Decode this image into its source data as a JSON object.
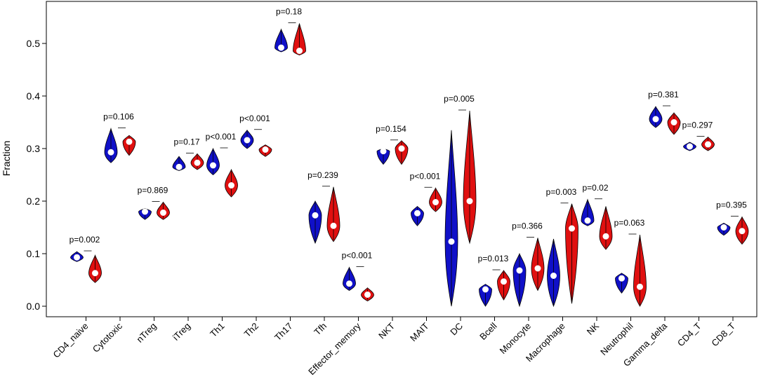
{
  "chart_data": {
    "type": "violin",
    "title": "",
    "xlabel": "",
    "ylabel": "Fraction",
    "ylim": [
      -0.01,
      0.58
    ],
    "yticks": [
      0.0,
      0.1,
      0.2,
      0.3,
      0.4,
      0.5
    ],
    "ytick_labels": [
      "0.0",
      "0.1",
      "0.2",
      "0.3",
      "0.4",
      "0.5"
    ],
    "series_colors": [
      "#1010c8",
      "#e01010"
    ],
    "categories": [
      {
        "name": "CD4_naive",
        "p": "p=0.002",
        "blue": {
          "min": 0.085,
          "max": 0.104,
          "median": 0.093
        },
        "red": {
          "min": 0.045,
          "max": 0.097,
          "median": 0.063
        }
      },
      {
        "name": "Cytotoxic",
        "p": "p=0.106",
        "blue": {
          "min": 0.273,
          "max": 0.338,
          "median": 0.293
        },
        "red": {
          "min": 0.287,
          "max": 0.325,
          "median": 0.313
        }
      },
      {
        "name": "nTreg",
        "p": "p=0.869",
        "blue": {
          "min": 0.165,
          "max": 0.186,
          "median": 0.18
        },
        "red": {
          "min": 0.165,
          "max": 0.198,
          "median": 0.178
        }
      },
      {
        "name": "iTreg",
        "p": "p=0.17",
        "blue": {
          "min": 0.258,
          "max": 0.285,
          "median": 0.265
        },
        "red": {
          "min": 0.26,
          "max": 0.29,
          "median": 0.273
        }
      },
      {
        "name": "Th1",
        "p": "p<0.001",
        "blue": {
          "min": 0.25,
          "max": 0.3,
          "median": 0.268
        },
        "red": {
          "min": 0.208,
          "max": 0.26,
          "median": 0.23
        }
      },
      {
        "name": "Th2",
        "p": "p<0.001",
        "blue": {
          "min": 0.3,
          "max": 0.335,
          "median": 0.316
        },
        "red": {
          "min": 0.285,
          "max": 0.307,
          "median": 0.298
        }
      },
      {
        "name": "Th17",
        "p": "p=0.18",
        "blue": {
          "min": 0.484,
          "max": 0.527,
          "median": 0.492
        },
        "red": {
          "min": 0.478,
          "max": 0.538,
          "median": 0.486
        }
      },
      {
        "name": "Tfh",
        "p": "p=0.239",
        "blue": {
          "min": 0.12,
          "max": 0.2,
          "median": 0.173
        },
        "red": {
          "min": 0.123,
          "max": 0.227,
          "median": 0.153
        }
      },
      {
        "name": "Effector_memory",
        "p": "p<0.001",
        "blue": {
          "min": 0.03,
          "max": 0.074,
          "median": 0.043
        },
        "red": {
          "min": 0.01,
          "max": 0.035,
          "median": 0.022
        }
      },
      {
        "name": "NKT",
        "p": "p=0.154",
        "blue": {
          "min": 0.27,
          "max": 0.3,
          "median": 0.295
        },
        "red": {
          "min": 0.27,
          "max": 0.315,
          "median": 0.3
        }
      },
      {
        "name": "MAIT",
        "p": "p<0.001",
        "blue": {
          "min": 0.153,
          "max": 0.19,
          "median": 0.177
        },
        "red": {
          "min": 0.18,
          "max": 0.225,
          "median": 0.198
        }
      },
      {
        "name": "DC",
        "p": "p=0.005",
        "blue": {
          "min": 0.0,
          "max": 0.335,
          "median": 0.123
        },
        "red": {
          "min": 0.12,
          "max": 0.372,
          "median": 0.2
        }
      },
      {
        "name": "Bcell",
        "p": "p=0.013",
        "blue": {
          "min": 0.0,
          "max": 0.042,
          "median": 0.032
        },
        "red": {
          "min": 0.012,
          "max": 0.068,
          "median": 0.047
        }
      },
      {
        "name": "Monocyte",
        "p": "p=0.366",
        "blue": {
          "min": 0.0,
          "max": 0.1,
          "median": 0.068
        },
        "red": {
          "min": 0.03,
          "max": 0.13,
          "median": 0.072
        }
      },
      {
        "name": "Macrophage",
        "p": "p=0.003",
        "blue": {
          "min": 0.0,
          "max": 0.128,
          "median": 0.058
        },
        "red": {
          "min": 0.005,
          "max": 0.195,
          "median": 0.148
        }
      },
      {
        "name": "NK",
        "p": "p=0.02",
        "blue": {
          "min": 0.153,
          "max": 0.203,
          "median": 0.163
        },
        "red": {
          "min": 0.108,
          "max": 0.19,
          "median": 0.133
        }
      },
      {
        "name": "Neutrophil",
        "p": "p=0.063",
        "blue": {
          "min": 0.025,
          "max": 0.063,
          "median": 0.053
        },
        "red": {
          "min": 0.0,
          "max": 0.136,
          "median": 0.037
        }
      },
      {
        "name": "Gamma_delta",
        "p": "p=0.381",
        "blue": {
          "min": 0.34,
          "max": 0.38,
          "median": 0.356
        },
        "red": {
          "min": 0.327,
          "max": 0.368,
          "median": 0.35
        }
      },
      {
        "name": "CD4_T",
        "p": "p=0.297",
        "blue": {
          "min": 0.296,
          "max": 0.312,
          "median": 0.304
        },
        "red": {
          "min": 0.296,
          "max": 0.322,
          "median": 0.308
        }
      },
      {
        "name": "CD8_T",
        "p": "p=0.395",
        "blue": {
          "min": 0.135,
          "max": 0.158,
          "median": 0.15
        },
        "red": {
          "min": 0.118,
          "max": 0.17,
          "median": 0.143
        }
      }
    ]
  }
}
